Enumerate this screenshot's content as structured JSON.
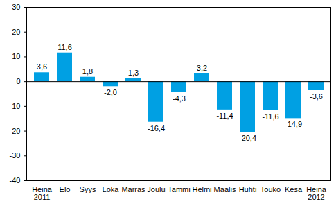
{
  "chart_data": {
    "type": "bar",
    "categories": [
      "Heinä\n2011",
      "Elo",
      "Syys",
      "Loka",
      "Marras",
      "Joulu",
      "Tammi",
      "Helmi",
      "Maalis",
      "Huhti",
      "Touko",
      "Kesä",
      "Heinä\n2012"
    ],
    "values": [
      3.6,
      11.6,
      1.8,
      -2.0,
      1.3,
      -16.4,
      -4.3,
      3.2,
      -11.4,
      -20.4,
      -11.6,
      -14.9,
      -3.6
    ],
    "value_labels": [
      "3,6",
      "11,6",
      "1,8",
      "-2,0",
      "1,3",
      "-16,4",
      "-4,3",
      "3,2",
      "-11,4",
      "-20,4",
      "-11,6",
      "-14,9",
      "-3,6"
    ],
    "color": "#00a0e3",
    "ylim": [
      -40,
      30
    ],
    "yticks": [
      -40,
      -30,
      -20,
      -10,
      0,
      10,
      20,
      30
    ],
    "grid": false,
    "data_labels": true
  }
}
